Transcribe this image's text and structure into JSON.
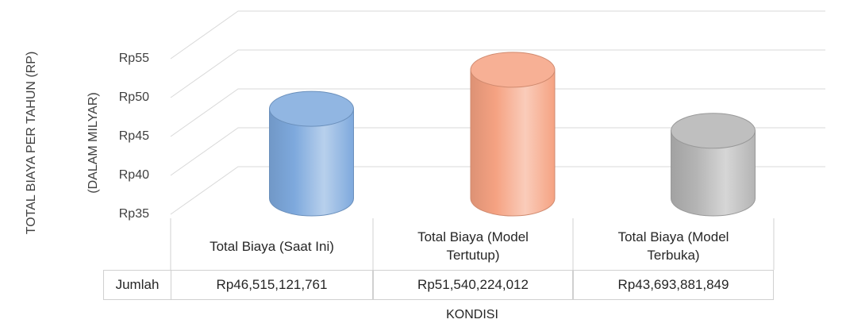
{
  "chart_data": {
    "type": "cylinder",
    "ylabel": [
      "TOTAL BIAYA PER TAHUN (RP)",
      "(DALAM MILYAR)"
    ],
    "xlabel": "KONDISI",
    "categories": [
      "Total Biaya (Saat Ini)",
      "Total Biaya (Model Tertutup)",
      "Total Biaya (Model Terbuka)"
    ],
    "series": [
      {
        "name": "Jumlah",
        "colors": [
          "#7ea9dd",
          "#f5a282",
          "#b4b4b4"
        ],
        "values": [
          46.515121761,
          51.540224012,
          43.693881849
        ],
        "value_labels": [
          "Rp46,515,121,761",
          "Rp51,540,224,012",
          "Rp43,693,881,849"
        ]
      }
    ],
    "ylim": [
      35,
      55
    ],
    "yticks": [
      {
        "value": 35,
        "label": "Rp35"
      },
      {
        "value": 40,
        "label": "Rp40"
      },
      {
        "value": 45,
        "label": "Rp45"
      },
      {
        "value": 50,
        "label": "Rp50"
      },
      {
        "value": 55,
        "label": "Rp55"
      }
    ],
    "grid": true
  }
}
